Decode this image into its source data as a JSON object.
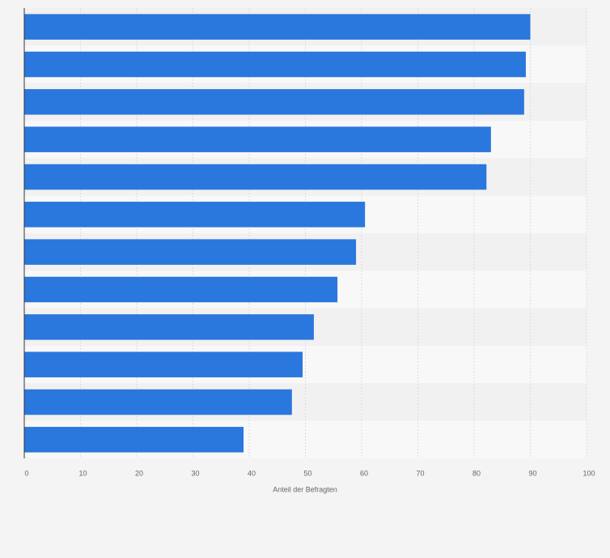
{
  "chart_data": {
    "type": "barh",
    "xlabel": "Anteil der Befragten",
    "categories": [
      null,
      null,
      null,
      null,
      null,
      null,
      null,
      null,
      null,
      null,
      null,
      null
    ],
    "values": [
      90,
      89.2,
      88.9,
      83,
      82.2,
      60.6,
      59,
      55.7,
      51.5,
      49.5,
      47.6,
      39
    ],
    "color": "#2a77dd",
    "xlim": [
      0,
      100
    ],
    "xticks": [
      0,
      10,
      20,
      30,
      40,
      50,
      60,
      70,
      80,
      90,
      100
    ],
    "grid": true
  }
}
